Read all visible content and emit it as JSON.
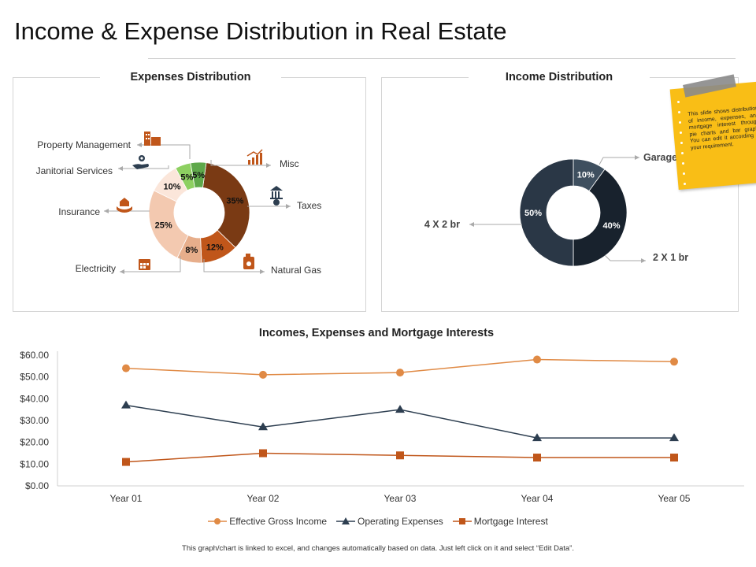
{
  "title": "Income & Expense Distribution in Real Estate",
  "footer": "This graph/chart is linked to excel, and changes automatically based on data. Just left click on it and select “Edit Data”.",
  "note": {
    "text": "This slide shows distribution of income, expenses, and mortgage interest through pie charts and bar graph. You can edit it according to your requirement."
  },
  "colors": {
    "income_line": "#e08a45",
    "expense_line": "#2d3e50",
    "mortgage_line": "#c0561a",
    "note": "#f9be16"
  },
  "chart_data": [
    {
      "type": "pie",
      "variant": "donut",
      "title": "Expenses Distribution",
      "slices": [
        {
          "name": "Taxes",
          "value": 35,
          "label": "35%",
          "color": "#7a3a14",
          "label_color": "#111"
        },
        {
          "name": "Natural Gas",
          "value": 12,
          "label": "12%",
          "color": "#c0561a",
          "label_color": "#111"
        },
        {
          "name": "Electricity",
          "value": 8,
          "label": "8%",
          "color": "#e7ae8b",
          "label_color": "#111"
        },
        {
          "name": "Insurance",
          "value": 25,
          "label": "25%",
          "color": "#f3c9b0",
          "label_color": "#111"
        },
        {
          "name": "Janitorial Services",
          "value": 10,
          "label": "10%",
          "color": "#fbe6da",
          "label_color": "#111"
        },
        {
          "name": "Property Management",
          "value": 5,
          "label": "5%",
          "color": "#8dd061",
          "label_color": "#111"
        },
        {
          "name": "Misc",
          "value": 5,
          "label": "5%",
          "color": "#5ea84a",
          "label_color": "#111"
        }
      ],
      "category_labels": {
        "property_management": "Property Management",
        "janitorial_services": "Janitorial Services",
        "insurance": "Insurance",
        "electricity": "Electricity",
        "misc": "Misc",
        "taxes": "Taxes",
        "natural_gas": "Natural Gas"
      }
    },
    {
      "type": "pie",
      "variant": "donut",
      "title": "Income Distribution",
      "slices": [
        {
          "name": "Garages",
          "value": 10,
          "label": "10%",
          "color": "#3e4f5f",
          "label_color": "#fff"
        },
        {
          "name": "2 X 1 br",
          "value": 40,
          "label": "40%",
          "color": "#18222d",
          "label_color": "#fff"
        },
        {
          "name": "4 X 2 br",
          "value": 50,
          "label": "50%",
          "color": "#2a3746",
          "label_color": "#fff"
        }
      ],
      "category_labels": {
        "garages": "Garages",
        "two_by_one": "2 X 1 br",
        "four_by_two": "4 X 2 br"
      }
    },
    {
      "type": "line",
      "title": "Incomes, Expenses and Mortgage Interests",
      "categories": [
        "Year 01",
        "Year 02",
        "Year 03",
        "Year 04",
        "Year 05"
      ],
      "y_ticks": [
        "$0.00",
        "$10.00",
        "$20.00",
        "$30.00",
        "$40.00",
        "$50.00",
        "$60.00"
      ],
      "ylim": [
        0,
        60
      ],
      "legend_position": "bottom",
      "series": [
        {
          "name": "Effective Gross Income",
          "values": [
            54,
            51,
            52,
            58,
            57
          ],
          "marker": "circle",
          "color": "#e08a45"
        },
        {
          "name": "Operating Expenses",
          "values": [
            37,
            27,
            35,
            22,
            22
          ],
          "marker": "triangle",
          "color": "#2d3e50"
        },
        {
          "name": "Mortgage Interest",
          "values": [
            11,
            15,
            14,
            13,
            13
          ],
          "marker": "square",
          "color": "#c0561a"
        }
      ]
    }
  ]
}
